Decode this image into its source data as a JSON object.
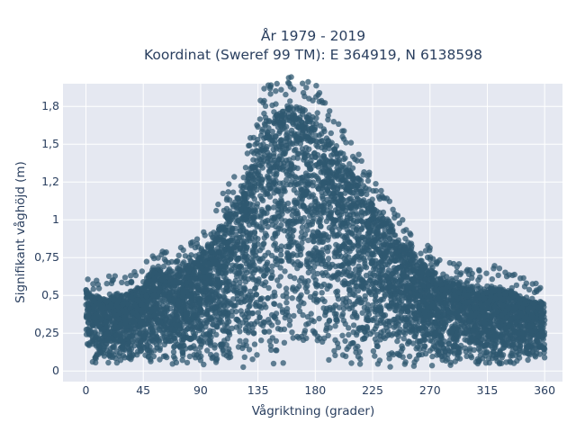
{
  "chart_data": {
    "type": "scatter",
    "title": "År 1979 - 2019",
    "subtitle": "Koordinat (Sweref 99 TM): E 364919, N 6138598",
    "xlabel": "Vågriktning (grader)",
    "ylabel": "Signifikant våghöjd (m)",
    "xlim": [
      -18,
      374
    ],
    "ylim": [
      -0.07,
      1.9
    ],
    "xticks": [
      0,
      45,
      90,
      135,
      180,
      225,
      270,
      315,
      360
    ],
    "xtick_labels": [
      "0",
      "45",
      "90",
      "135",
      "180",
      "225",
      "270",
      "315",
      "360"
    ],
    "yticks": [
      0,
      0.25,
      0.5,
      0.75,
      1,
      1.25,
      1.5,
      1.75
    ],
    "ytick_labels": [
      "0",
      "0,25",
      "0,5",
      "0,75",
      "1",
      "1,2",
      "1,5",
      "1,8"
    ],
    "grid": true,
    "colors": {
      "marker": "#2f5870",
      "plot_bg": "#e5e8f1",
      "grid": "#ffffff",
      "text": "#2a3f5f"
    },
    "envelope": {
      "x": [
        0,
        10,
        20,
        30,
        45,
        55,
        60,
        70,
        80,
        90,
        100,
        110,
        120,
        125,
        130,
        135,
        140,
        145,
        150,
        155,
        160,
        165,
        170,
        175,
        180,
        185,
        190,
        200,
        210,
        220,
        225,
        230,
        240,
        250,
        260,
        270,
        280,
        290,
        300,
        310,
        315,
        320,
        330,
        340,
        350,
        360
      ],
      "y_max": [
        0.55,
        0.5,
        0.52,
        0.52,
        0.6,
        0.72,
        0.68,
        0.7,
        0.74,
        0.8,
        0.92,
        1.1,
        1.2,
        1.3,
        1.45,
        1.6,
        1.78,
        1.8,
        1.82,
        1.82,
        1.84,
        1.84,
        1.82,
        1.8,
        1.78,
        1.7,
        1.62,
        1.5,
        1.38,
        1.24,
        1.18,
        1.1,
        1.0,
        0.88,
        0.78,
        0.7,
        0.62,
        0.6,
        0.58,
        0.55,
        0.55,
        0.58,
        0.55,
        0.52,
        0.48,
        0.48
      ],
      "y_min": [
        0.05,
        0.04,
        0.04,
        0.03,
        0.03,
        0.03,
        0.03,
        0.02,
        0.02,
        0.02,
        0.02,
        0.02,
        0.02,
        0.02,
        0.02,
        0.02,
        0.02,
        0.02,
        0.02,
        0.02,
        0.02,
        0.02,
        0.02,
        0.02,
        0.02,
        0.02,
        0.02,
        0.02,
        0.02,
        0.02,
        0.02,
        0.02,
        0.02,
        0.02,
        0.03,
        0.02,
        0.03,
        0.03,
        0.03,
        0.03,
        0.03,
        0.03,
        0.03,
        0.03,
        0.04,
        0.05
      ]
    }
  }
}
